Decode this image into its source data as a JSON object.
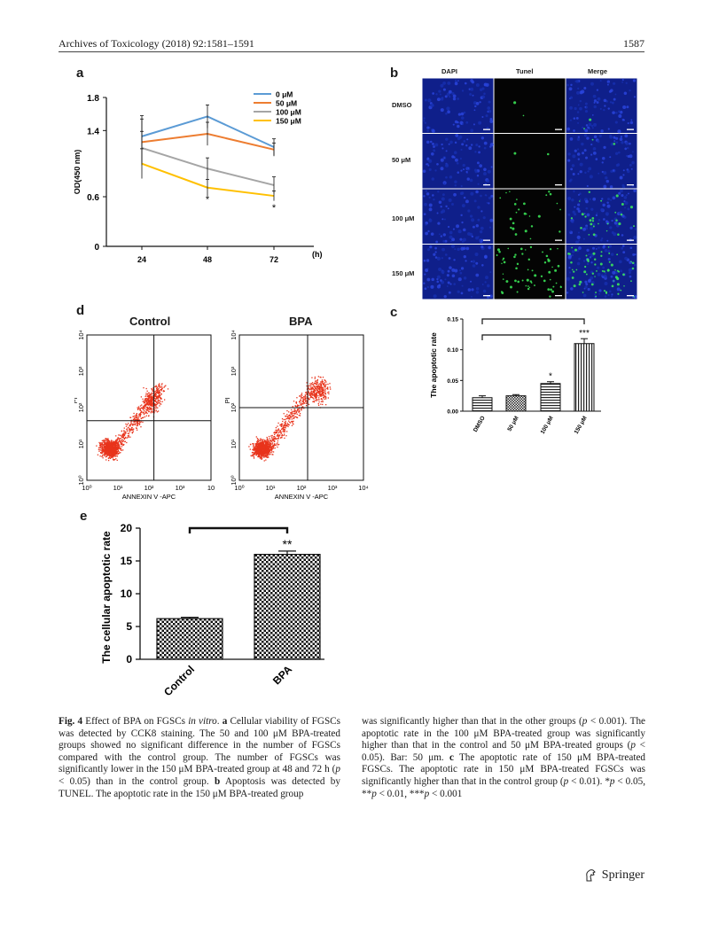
{
  "header": {
    "journal": "Archives of Toxicology (2018) 92:1581–1591",
    "page_number": "1587"
  },
  "panels": {
    "a": {
      "letter": "a"
    },
    "b": {
      "letter": "b",
      "column_labels": [
        "DAPI",
        "Tunel",
        "Merge"
      ],
      "row_labels": [
        "DMSO",
        "50 μM",
        "100 μM",
        "150 μM"
      ]
    },
    "c": {
      "letter": "c",
      "ylabel": "The apoptotic rate"
    },
    "d": {
      "letter": "d",
      "plots": [
        {
          "title": "Control",
          "xlabel": "ANNEXIN V -APC",
          "ylabel": "PI"
        },
        {
          "title": "BPA",
          "xlabel": "ANNEXIN V -APC",
          "ylabel": "PI"
        }
      ]
    },
    "e": {
      "letter": "e",
      "ylabel": "The cellular apoptotic rate"
    }
  },
  "chart_data": [
    {
      "panel": "a",
      "type": "line",
      "x": [
        24,
        48,
        72
      ],
      "x_tick_labels": [
        "24",
        "48",
        "72"
      ],
      "x_unit_label": "(h)",
      "ylabel": "OD(450 nm)",
      "y_ticks": [
        "0",
        "0.6",
        "1.4",
        "1.8"
      ],
      "ylim": [
        0,
        1.8
      ],
      "series": [
        {
          "name": "0 μM",
          "color": "#5b9bd5",
          "values": [
            1.33,
            1.57,
            1.2
          ],
          "err": [
            0.25,
            0.14,
            0.1
          ]
        },
        {
          "name": "50 μM",
          "color": "#ed7d31",
          "values": [
            1.26,
            1.36,
            1.17
          ],
          "err": [
            0.28,
            0.14,
            0.08
          ]
        },
        {
          "name": "100 μM",
          "color": "#a5a5a5",
          "values": [
            1.19,
            0.94,
            0.74
          ],
          "err": [
            0.2,
            0.13,
            0.1
          ]
        },
        {
          "name": "150 μM",
          "color": "#ffc000",
          "values": [
            1.0,
            0.71,
            0.61
          ],
          "err": [
            0.18,
            0.1,
            0.06
          ]
        }
      ],
      "annotations": [
        {
          "x": 48,
          "text": "*"
        },
        {
          "x": 72,
          "text": "*"
        }
      ],
      "legend": "top-right"
    },
    {
      "panel": "c",
      "type": "bar",
      "categories": [
        "DMSO",
        "50 μM",
        "100 μM",
        "150 μM"
      ],
      "values": [
        0.022,
        0.025,
        0.045,
        0.11
      ],
      "err": [
        0.003,
        0.002,
        0.003,
        0.008
      ],
      "patterns": [
        "horizontal-lines",
        "checker",
        "horizontal-lines",
        "vertical-lines"
      ],
      "sig": [
        "",
        "",
        "*",
        "***"
      ],
      "y_ticks": [
        "0.00",
        "0.05",
        "0.10",
        "0.15"
      ],
      "ylim": [
        0,
        0.15
      ],
      "brackets": [
        [
          "DMSO",
          "150 μM"
        ],
        [
          "DMSO",
          "100 μM"
        ]
      ]
    },
    {
      "panel": "d",
      "type": "scatter",
      "plots": [
        {
          "name": "Control"
        },
        {
          "name": "BPA"
        }
      ],
      "x_tick_labels": [
        "10⁰",
        "10¹",
        "10²",
        "10³",
        "10"
      ],
      "x_tick_labels_bpa": [
        "10⁰",
        "10¹",
        "10²",
        "10³",
        "10⁴"
      ],
      "y_tick_labels": [
        "10⁰",
        "10¹",
        "10²",
        "10³",
        "10⁴"
      ],
      "point_color": "#e8341c"
    },
    {
      "panel": "e",
      "type": "bar",
      "categories": [
        "Control",
        "BPA"
      ],
      "values": [
        6.2,
        16.0
      ],
      "err": [
        0.2,
        0.5
      ],
      "sig": [
        "",
        "**"
      ],
      "y_ticks": [
        "0",
        "5",
        "10",
        "15",
        "20"
      ],
      "ylim": [
        0,
        20
      ],
      "brackets": [
        [
          "Control",
          "BPA"
        ]
      ]
    }
  ],
  "caption": {
    "left": [
      {
        "b": "Fig. 4",
        "t": "  Effect of BPA on FGSCs "
      },
      {
        "i": "in vitro",
        "t": ". "
      },
      {
        "b": "a",
        "t": " Cellular viability of FGSCs was detected by CCK8 staining. The 50 and 100 μM BPA-treated groups showed no significant difference in the number of FGSCs compared with the control group. The number of FGSCs was significantly lower in the 150 μM BPA-treated group at 48 and 72 h ("
      },
      {
        "i": "p",
        "t": " < 0.05) than in the control group. "
      },
      {
        "b": "b",
        "t": " Apoptosis was detected by TUNEL. The apoptotic rate in the 150 μM BPA-treated group"
      }
    ],
    "right": [
      {
        "t": "was significantly higher than that in the other groups ("
      },
      {
        "i": "p",
        "t": " < 0.001). The apoptotic rate in the 100 μM BPA-treated group was significantly higher than that in the control and 50 μM BPA-treated groups ("
      },
      {
        "i": "p",
        "t": " < 0.05). Bar: 50 μm. "
      },
      {
        "b": "c",
        "t": " The apoptotic rate of 150 μM BPA-treated FGSCs. The apoptotic rate in 150 μM BPA-treated FGSCs was significantly higher than that in the control group ("
      },
      {
        "i": "p",
        "t": " < 0.01). *"
      },
      {
        "i": "p",
        "t": " < 0.05, **"
      },
      {
        "i": "p",
        "t": " < 0.01, ***"
      },
      {
        "i": "p",
        "t": " < 0.001"
      }
    ]
  },
  "footer": {
    "publisher": "Springer"
  }
}
